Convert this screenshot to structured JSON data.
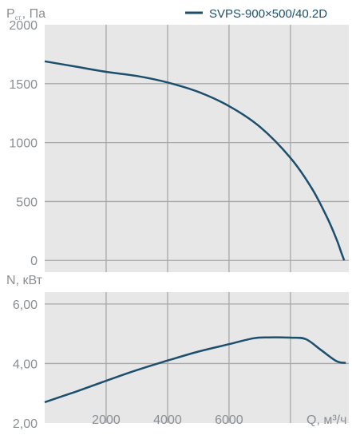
{
  "legend": {
    "label": "SVPS-900×500/40.2D"
  },
  "colors": {
    "curve": "#1b4f6c",
    "panel": "#e7e7e8",
    "grid": "#a8a8a8",
    "text": "#8a8f93"
  },
  "chart_data": [
    {
      "type": "line",
      "name": "pressure",
      "ylabel_main": "P",
      "ylabel_sub": "ст.",
      "ylabel_tail": ", Па",
      "xlim": [
        0,
        9900
      ],
      "ylim": [
        -100,
        2000
      ],
      "yticks": [
        2000,
        1500,
        1000,
        500,
        0
      ],
      "ytick_labels": [
        "2000",
        "1500",
        "1000",
        "500",
        "0"
      ],
      "xgrid": [
        2000,
        4000,
        6000,
        8000
      ],
      "grid": true,
      "series": [
        {
          "name": "SVPS-900×500/40.2D",
          "x": [
            0,
            1000,
            2000,
            3000,
            4000,
            5000,
            6000,
            7000,
            8000,
            8700,
            9200,
            9500,
            9650,
            9750
          ],
          "y": [
            1690,
            1645,
            1600,
            1565,
            1510,
            1430,
            1310,
            1135,
            870,
            610,
            360,
            180,
            70,
            0
          ]
        }
      ]
    },
    {
      "type": "line",
      "name": "power",
      "ylabel": "N, кВт",
      "xlabel": "Q, м³/ч",
      "xlim": [
        0,
        9900
      ],
      "ylim": [
        2.0,
        6.4
      ],
      "yticks": [
        6.0,
        4.0,
        2.0
      ],
      "ytick_labels": [
        "6,00",
        "4,00",
        "2,00"
      ],
      "xticks": [
        2000,
        4000,
        6000
      ],
      "xtick_labels": [
        "2000",
        "4000",
        "6000"
      ],
      "xgrid": [
        2000,
        4000,
        6000,
        8000
      ],
      "grid": true,
      "series": [
        {
          "name": "SVPS-900×500/40.2D",
          "x": [
            0,
            1000,
            2000,
            3000,
            4000,
            5000,
            6000,
            6800,
            7300,
            8000,
            8500,
            9000,
            9500,
            9800
          ],
          "y": [
            2.7,
            3.05,
            3.42,
            3.78,
            4.1,
            4.4,
            4.65,
            4.85,
            4.88,
            4.87,
            4.82,
            4.45,
            4.08,
            4.02
          ]
        }
      ]
    }
  ]
}
